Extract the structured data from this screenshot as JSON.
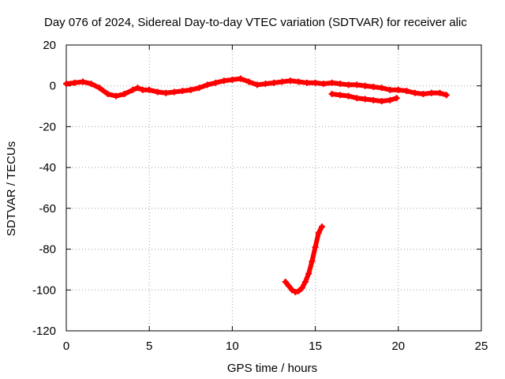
{
  "chart_data": {
    "type": "scatter",
    "title": "Day 076 of 2024, Sidereal Day-to-day VTEC variation (SDTVAR) for receiver alic",
    "xlabel": "GPS time / hours",
    "ylabel": "SDTVAR / TECUs",
    "xlim": [
      0,
      25
    ],
    "ylim": [
      -120,
      20
    ],
    "xticks": [
      0,
      5,
      10,
      15,
      20,
      25
    ],
    "yticks": [
      20,
      0,
      -20,
      -40,
      -60,
      -80,
      -100,
      -120
    ],
    "grid": true,
    "legend": "none",
    "series": [
      {
        "color": "#ff0000",
        "x": [
          0.0,
          0.5,
          1.0,
          1.5,
          2.0,
          2.5,
          3.0,
          3.5,
          4.0,
          4.3,
          4.6,
          5.0,
          5.5,
          6.0,
          6.5,
          7.0,
          7.5,
          8.0,
          8.5,
          9.0,
          9.5,
          10.0,
          10.5,
          11.0,
          11.5,
          12.0,
          12.5,
          13.0,
          13.5,
          14.0,
          14.5,
          15.0,
          15.5,
          16.0,
          16.5,
          17.0,
          17.5,
          18.0,
          18.5,
          19.0,
          19.5,
          20.0,
          20.5,
          21.0,
          21.5,
          22.0,
          22.5,
          22.9
        ],
        "y": [
          1,
          1.5,
          2,
          1,
          -1,
          -4,
          -5,
          -4,
          -2,
          -1,
          -2,
          -2,
          -3,
          -3.5,
          -3,
          -2.5,
          -2,
          -1,
          0.5,
          1.5,
          2.5,
          3,
          3.5,
          2,
          0.5,
          1,
          1.5,
          2,
          2.5,
          2,
          1.5,
          1.5,
          1,
          1.5,
          1,
          0.5,
          0.5,
          0,
          -0.5,
          -1,
          -2,
          -2,
          -2.5,
          -3.5,
          -4,
          -3.5,
          -3.5,
          -4.5
        ]
      },
      {
        "color": "#ff0000",
        "x": [
          16.0,
          16.5,
          17.0,
          17.5,
          18.0,
          18.5,
          19.0,
          19.5,
          19.9
        ],
        "y": [
          -4,
          -4.5,
          -5,
          -6,
          -6.5,
          -7,
          -7.5,
          -7,
          -6
        ]
      },
      {
        "color": "#ff0000",
        "x": [
          13.2,
          13.4,
          13.6,
          13.8,
          14.0,
          14.2,
          14.4,
          14.6,
          14.8,
          15.0,
          15.2,
          15.4
        ],
        "y": [
          -96,
          -98,
          -100,
          -101,
          -100.5,
          -99,
          -96,
          -92,
          -86,
          -79,
          -72,
          -69
        ]
      }
    ]
  }
}
